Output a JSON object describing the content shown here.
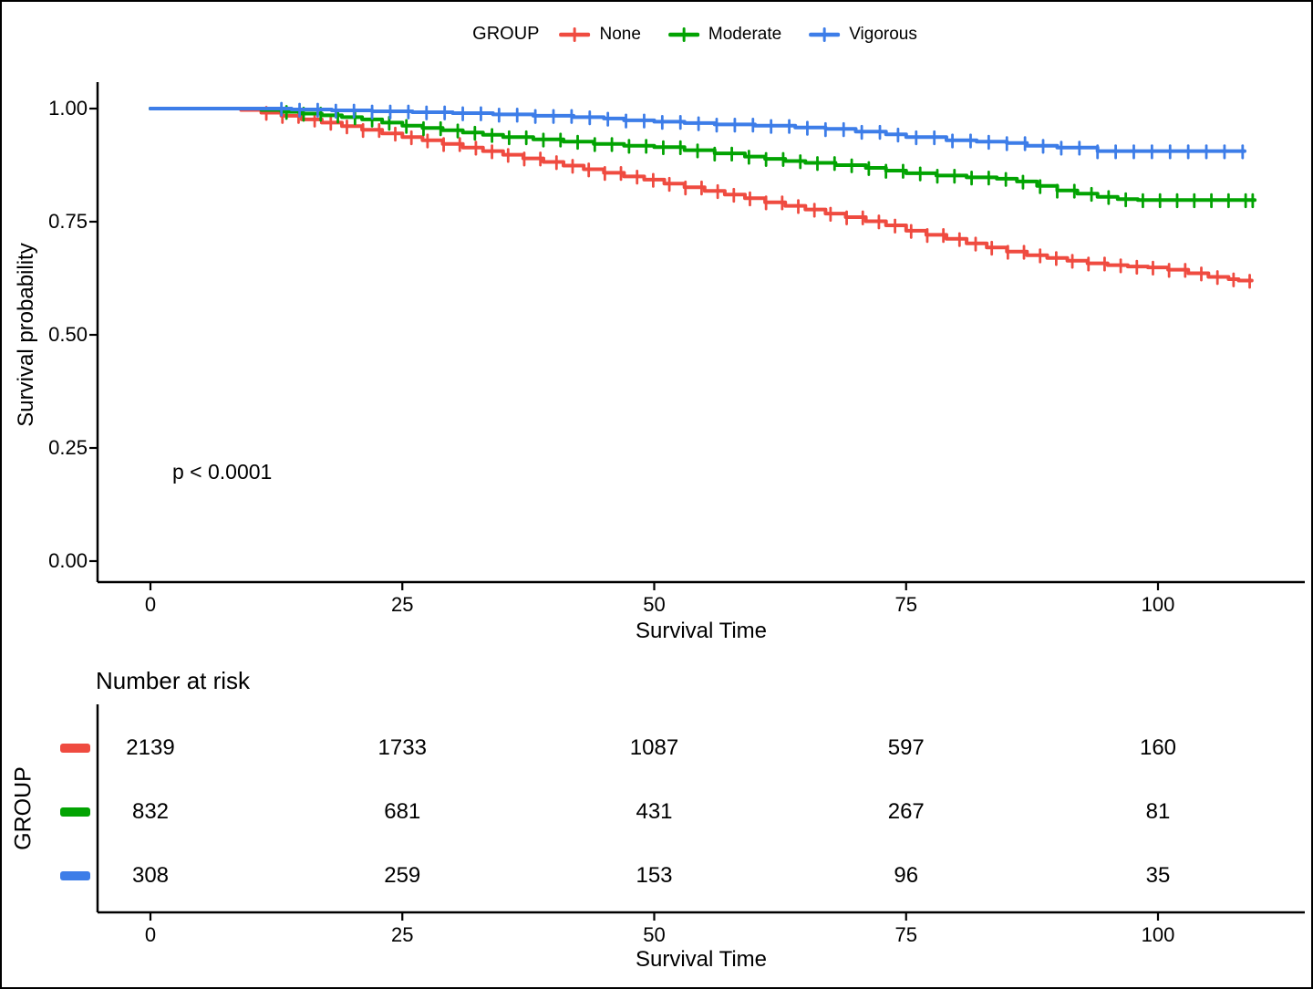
{
  "chart_data": {
    "type": "line",
    "subtype": "kaplan-meier-survival",
    "legend_title": "GROUP",
    "pvalue": "p < 0.0001",
    "xlabel": "Survival Time",
    "ylabel": "Survival probability",
    "x_ticks": [
      0,
      25,
      50,
      75,
      100
    ],
    "y_tick_labels": [
      "0.00",
      "0.25",
      "0.50",
      "0.75",
      "1.00"
    ],
    "y_ticks": [
      0.0,
      0.25,
      0.5,
      0.75,
      1.0
    ],
    "xlim": [
      0,
      114
    ],
    "ylim": [
      0,
      1.05
    ],
    "grid": "off",
    "legend_position": "top",
    "series": [
      {
        "name": "None",
        "color": "#EF4B40",
        "end": 109.3,
        "steps": [
          [
            0,
            1.0
          ],
          [
            9,
            0.997
          ],
          [
            11,
            0.991
          ],
          [
            13,
            0.984
          ],
          [
            15,
            0.976
          ],
          [
            17,
            0.969
          ],
          [
            19,
            0.961
          ],
          [
            21,
            0.953
          ],
          [
            23,
            0.945
          ],
          [
            25,
            0.937
          ],
          [
            27,
            0.93
          ],
          [
            29,
            0.922
          ],
          [
            31,
            0.914
          ],
          [
            33,
            0.906
          ],
          [
            35,
            0.898
          ],
          [
            37,
            0.89
          ],
          [
            39,
            0.882
          ],
          [
            41,
            0.874
          ],
          [
            43,
            0.866
          ],
          [
            45,
            0.858
          ],
          [
            47,
            0.85
          ],
          [
            49,
            0.843
          ],
          [
            51,
            0.834
          ],
          [
            53,
            0.826
          ],
          [
            55,
            0.818
          ],
          [
            57,
            0.81
          ],
          [
            59,
            0.802
          ],
          [
            61,
            0.793
          ],
          [
            63,
            0.785
          ],
          [
            65,
            0.777
          ],
          [
            67,
            0.768
          ],
          [
            69,
            0.76
          ],
          [
            71,
            0.751
          ],
          [
            73,
            0.742
          ],
          [
            75,
            0.73
          ],
          [
            77,
            0.721
          ],
          [
            79,
            0.712
          ],
          [
            81,
            0.702
          ],
          [
            83,
            0.693
          ],
          [
            85,
            0.684
          ],
          [
            87,
            0.676
          ],
          [
            89,
            0.67
          ],
          [
            91,
            0.664
          ],
          [
            93,
            0.658
          ],
          [
            95,
            0.654
          ],
          [
            97,
            0.651
          ],
          [
            99,
            0.649
          ],
          [
            101,
            0.644
          ],
          [
            103,
            0.636
          ],
          [
            105,
            0.628
          ],
          [
            107,
            0.623
          ],
          [
            108,
            0.62
          ]
        ],
        "censor_times": [
          11.5,
          13.1,
          14.7,
          16.3,
          17.9,
          19.5,
          21.1,
          22.7,
          24.3,
          25.9,
          27.5,
          29.1,
          30.7,
          32.3,
          33.9,
          35.5,
          37.1,
          38.7,
          40.3,
          41.9,
          43.5,
          45.1,
          46.7,
          48.3,
          49.9,
          51.5,
          53.1,
          54.7,
          56.3,
          57.9,
          59.5,
          61.1,
          62.7,
          64.3,
          65.9,
          67.5,
          69.1,
          70.7,
          72.3,
          73.9,
          75.5,
          77.1,
          78.7,
          80.3,
          81.9,
          83.5,
          85.1,
          86.7,
          88.3,
          89.9,
          91.5,
          93.1,
          94.7,
          96.3,
          97.9,
          99.5,
          101.1,
          102.7,
          104.3,
          105.9,
          107.5,
          109.1
        ]
      },
      {
        "name": "Moderate",
        "color": "#02A302",
        "end": 109.6,
        "steps": [
          [
            0,
            1.0
          ],
          [
            11,
            0.997
          ],
          [
            13,
            0.993
          ],
          [
            15,
            0.989
          ],
          [
            17,
            0.985
          ],
          [
            19,
            0.981
          ],
          [
            21,
            0.976
          ],
          [
            23,
            0.969
          ],
          [
            25,
            0.962
          ],
          [
            27,
            0.957
          ],
          [
            29,
            0.952
          ],
          [
            31,
            0.947
          ],
          [
            33,
            0.942
          ],
          [
            35,
            0.937
          ],
          [
            38,
            0.932
          ],
          [
            41,
            0.927
          ],
          [
            44,
            0.922
          ],
          [
            47,
            0.918
          ],
          [
            50,
            0.915
          ],
          [
            53,
            0.908
          ],
          [
            56,
            0.901
          ],
          [
            59,
            0.894
          ],
          [
            61,
            0.889
          ],
          [
            63,
            0.884
          ],
          [
            65,
            0.88
          ],
          [
            68,
            0.875
          ],
          [
            71,
            0.869
          ],
          [
            73,
            0.863
          ],
          [
            75,
            0.857
          ],
          [
            78,
            0.852
          ],
          [
            81,
            0.848
          ],
          [
            84,
            0.845
          ],
          [
            86,
            0.839
          ],
          [
            88,
            0.829
          ],
          [
            90,
            0.819
          ],
          [
            92,
            0.812
          ],
          [
            94,
            0.805
          ],
          [
            96,
            0.8
          ],
          [
            98,
            0.798
          ]
        ],
        "censor_times": [
          13.5,
          15.2,
          16.9,
          18.6,
          20.3,
          22,
          23.7,
          25.4,
          27.1,
          28.8,
          30.5,
          32.2,
          33.9,
          35.6,
          37.3,
          39,
          40.7,
          42.4,
          44.1,
          45.8,
          47.5,
          49.2,
          50.9,
          52.6,
          54.3,
          56,
          57.7,
          59.4,
          61.1,
          62.8,
          64.5,
          66.2,
          67.9,
          69.6,
          71.3,
          73,
          74.7,
          76.4,
          78.1,
          79.8,
          81.5,
          83.2,
          84.9,
          86.6,
          88.3,
          90,
          91.7,
          93.4,
          95.1,
          96.8,
          98.5,
          100.2,
          101.9,
          103.6,
          105.3,
          107,
          108.7,
          109.4
        ]
      },
      {
        "name": "Vigorous",
        "color": "#3D7DE8",
        "end": 108.6,
        "steps": [
          [
            0,
            1.0
          ],
          [
            14,
            0.998
          ],
          [
            18,
            0.996
          ],
          [
            22,
            0.994
          ],
          [
            26,
            0.992
          ],
          [
            30,
            0.99
          ],
          [
            34,
            0.987
          ],
          [
            38,
            0.984
          ],
          [
            42,
            0.981
          ],
          [
            45,
            0.978
          ],
          [
            47,
            0.974
          ],
          [
            50,
            0.971
          ],
          [
            53,
            0.968
          ],
          [
            56,
            0.965
          ],
          [
            60,
            0.962
          ],
          [
            64,
            0.958
          ],
          [
            67,
            0.955
          ],
          [
            70,
            0.949
          ],
          [
            73,
            0.943
          ],
          [
            75,
            0.937
          ],
          [
            79,
            0.93
          ],
          [
            82,
            0.927
          ],
          [
            85,
            0.924
          ],
          [
            87,
            0.918
          ],
          [
            90,
            0.914
          ],
          [
            94,
            0.906
          ]
        ],
        "censor_times": [
          13,
          14.8,
          16.6,
          18.4,
          20.2,
          22,
          23.8,
          25.6,
          27.4,
          29.2,
          31,
          32.8,
          34.6,
          36.4,
          38.2,
          40,
          41.8,
          43.6,
          45.4,
          47.2,
          49,
          50.8,
          52.6,
          54.4,
          56.2,
          58,
          59.8,
          61.6,
          63.4,
          65.2,
          67,
          68.8,
          70.6,
          72.4,
          74.2,
          76,
          77.8,
          79.6,
          81.4,
          83.2,
          85,
          86.8,
          88.6,
          90.4,
          92.2,
          94,
          95.8,
          97.6,
          99.4,
          101.2,
          103,
          104.8,
          106.6,
          108.4
        ]
      }
    ],
    "risk_table": {
      "title": "Number at risk",
      "ylabel": "GROUP",
      "xlabel": "Survival Time",
      "times": [
        0,
        25,
        50,
        75,
        100
      ],
      "rows": [
        {
          "name": "None",
          "color": "#EF4B40",
          "values": [
            2139,
            1733,
            1087,
            597,
            160
          ]
        },
        {
          "name": "Moderate",
          "color": "#02A302",
          "values": [
            832,
            681,
            431,
            267,
            81
          ]
        },
        {
          "name": "Vigorous",
          "color": "#3D7DE8",
          "values": [
            308,
            259,
            153,
            96,
            35
          ]
        }
      ]
    }
  }
}
